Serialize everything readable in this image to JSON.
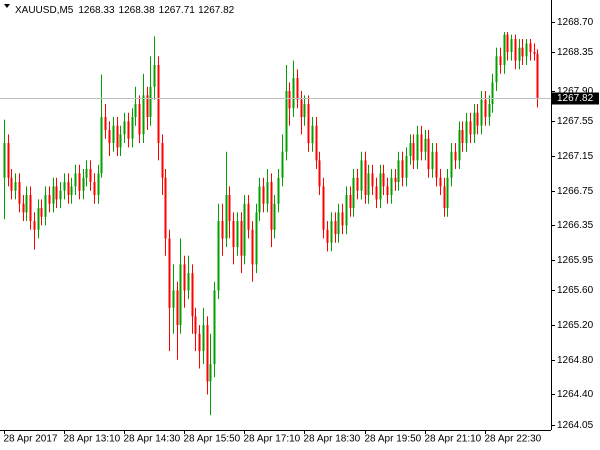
{
  "chart_data": {
    "type": "candlestick",
    "title": "XAUUSD,M5",
    "up_color": "#00a000",
    "down_color": "#ff0000",
    "price_line_color": "#c0c0c0",
    "xlim": [
      -1,
      145.6
    ],
    "xticks": [
      {
        "value": 0,
        "label": "28 Apr 2017"
      },
      {
        "value": 16,
        "label": "28 Apr 13:10"
      },
      {
        "value": 32,
        "label": "28 Apr 14:30"
      },
      {
        "value": 48,
        "label": "28 Apr 15:50"
      },
      {
        "value": 64,
        "label": "28 Apr 17:10"
      },
      {
        "value": 80,
        "label": "28 Apr 18:30"
      },
      {
        "value": 96,
        "label": "28 Apr 19:50"
      },
      {
        "value": 112,
        "label": "28 Apr 21:10"
      },
      {
        "value": 128,
        "label": "28 Apr 22:30"
      }
    ],
    "ylim": [
      1263.99,
      1268.95
    ],
    "yticks": [
      {
        "value": 1268.7,
        "label": "1268.70"
      },
      {
        "value": 1268.35,
        "label": "1268.35"
      },
      {
        "value": 1267.9,
        "label": "1267.90"
      },
      {
        "value": 1267.55,
        "label": "1267.55"
      },
      {
        "value": 1267.15,
        "label": "1267.15"
      },
      {
        "value": 1266.75,
        "label": "1266.75"
      },
      {
        "value": 1266.35,
        "label": "1266.35"
      },
      {
        "value": 1265.95,
        "label": "1265.95"
      },
      {
        "value": 1265.6,
        "label": "1265.60"
      },
      {
        "value": 1265.2,
        "label": "1265.20"
      },
      {
        "value": 1264.8,
        "label": "1264.80"
      },
      {
        "value": 1264.4,
        "label": "1264.40"
      },
      {
        "value": 1264.05,
        "label": "1264.05"
      }
    ],
    "open": [
      1266.9,
      1267.3,
      1266.9,
      1266.75,
      1266.85,
      1266.6,
      1266.5,
      1266.7,
      1266.4,
      1266.3,
      1266.55,
      1266.45,
      1266.7,
      1266.6,
      1266.8,
      1266.65,
      1266.75,
      1266.85,
      1266.7,
      1266.8,
      1266.95,
      1266.75,
      1266.9,
      1267.0,
      1266.85,
      1266.7,
      1266.95,
      1267.6,
      1267.45,
      1267.3,
      1267.5,
      1267.25,
      1267.4,
      1267.55,
      1267.35,
      1267.6,
      1267.75,
      1267.4,
      1267.85,
      1267.6,
      1267.95,
      1268.2,
      1267.3,
      1266.9,
      1266.2,
      1265.4,
      1265.6,
      1265.2,
      1265.9,
      1265.6,
      1265.8,
      1265.3,
      1265.1,
      1264.9,
      1265.2,
      1264.55,
      1264.75,
      1265.6,
      1266.4,
      1266.2,
      1266.7,
      1266.4,
      1266.1,
      1266.4,
      1266.0,
      1266.6,
      1266.3,
      1265.9,
      1266.5,
      1266.8,
      1266.6,
      1266.85,
      1266.3,
      1266.6,
      1266.9,
      1267.2,
      1267.9,
      1267.7,
      1268.05,
      1267.8,
      1267.6,
      1267.75,
      1267.3,
      1267.5,
      1267.1,
      1266.8,
      1266.3,
      1266.15,
      1266.4,
      1266.25,
      1266.5,
      1266.35,
      1266.7,
      1266.55,
      1266.9,
      1266.75,
      1267.1,
      1266.7,
      1266.95,
      1266.8,
      1266.65,
      1266.95,
      1266.8,
      1266.7,
      1266.9,
      1266.85,
      1267.1,
      1266.9,
      1267.15,
      1267.3,
      1267.1,
      1267.4,
      1267.2,
      1267.35,
      1267.0,
      1267.2,
      1266.9,
      1266.8,
      1266.55,
      1266.9,
      1267.2,
      1267.1,
      1267.45,
      1267.3,
      1267.55,
      1267.4,
      1267.65,
      1267.5,
      1267.8,
      1267.6,
      1267.75,
      1268.0,
      1268.3,
      1268.2,
      1268.55,
      1268.35,
      1268.5,
      1268.25,
      1268.4,
      1268.3,
      1268.45,
      1268.35,
      1268.33
    ],
    "high": [
      1267.57,
      1267.4,
      1267.0,
      1266.95,
      1266.95,
      1266.7,
      1266.8,
      1266.8,
      1266.5,
      1266.65,
      1266.65,
      1266.8,
      1266.8,
      1266.9,
      1266.9,
      1266.85,
      1266.95,
      1266.95,
      1266.9,
      1267.05,
      1267.05,
      1267.0,
      1267.1,
      1267.1,
      1266.95,
      1267.05,
      1268.09,
      1267.75,
      1267.55,
      1267.6,
      1267.6,
      1267.5,
      1267.65,
      1267.65,
      1267.7,
      1267.95,
      1267.85,
      1268.1,
      1267.95,
      1268.3,
      1268.53,
      1268.3,
      1267.4,
      1267.0,
      1266.3,
      1265.9,
      1265.7,
      1266.2,
      1266.0,
      1266.0,
      1265.9,
      1265.4,
      1265.2,
      1265.4,
      1265.3,
      1265.1,
      1265.7,
      1266.6,
      1266.6,
      1267.2,
      1266.8,
      1266.5,
      1266.5,
      1266.5,
      1266.7,
      1266.7,
      1266.4,
      1266.6,
      1266.9,
      1266.9,
      1267.0,
      1266.95,
      1266.7,
      1267.0,
      1267.4,
      1268.2,
      1268.0,
      1268.25,
      1268.15,
      1267.9,
      1267.85,
      1267.85,
      1267.6,
      1267.6,
      1267.2,
      1266.9,
      1266.4,
      1266.5,
      1266.5,
      1266.6,
      1266.6,
      1266.8,
      1266.8,
      1267.0,
      1267.0,
      1267.2,
      1267.2,
      1267.05,
      1267.05,
      1266.9,
      1267.05,
      1267.05,
      1266.9,
      1267.0,
      1267.0,
      1267.2,
      1267.2,
      1267.25,
      1267.4,
      1267.4,
      1267.5,
      1267.5,
      1267.45,
      1267.45,
      1267.3,
      1267.3,
      1267.0,
      1266.9,
      1267.0,
      1267.3,
      1267.3,
      1267.55,
      1267.55,
      1267.65,
      1267.65,
      1267.75,
      1267.75,
      1267.9,
      1267.9,
      1267.85,
      1268.1,
      1268.4,
      1268.4,
      1268.58,
      1268.58,
      1268.55,
      1268.55,
      1268.5,
      1268.5,
      1268.5,
      1268.5,
      1268.45,
      1268.38
    ],
    "low": [
      1266.42,
      1266.8,
      1266.65,
      1266.65,
      1266.5,
      1266.4,
      1266.4,
      1266.3,
      1266.07,
      1266.2,
      1266.35,
      1266.35,
      1266.5,
      1266.5,
      1266.55,
      1266.55,
      1266.65,
      1266.6,
      1266.6,
      1266.7,
      1266.65,
      1266.65,
      1266.8,
      1266.75,
      1266.6,
      1266.6,
      1266.9,
      1267.35,
      1267.15,
      1267.2,
      1267.15,
      1267.15,
      1267.3,
      1267.25,
      1267.25,
      1267.5,
      1267.3,
      1267.3,
      1267.45,
      1267.5,
      1267.8,
      1267.1,
      1266.7,
      1266.0,
      1264.9,
      1265.1,
      1264.8,
      1265.1,
      1265.4,
      1265.5,
      1265.1,
      1264.9,
      1264.7,
      1264.75,
      1264.4,
      1264.16,
      1264.6,
      1265.5,
      1266.0,
      1266.1,
      1266.2,
      1265.9,
      1266.0,
      1265.8,
      1265.9,
      1266.2,
      1265.7,
      1265.8,
      1266.4,
      1266.5,
      1266.5,
      1266.1,
      1266.2,
      1266.5,
      1266.8,
      1267.1,
      1267.5,
      1267.6,
      1267.7,
      1267.4,
      1267.5,
      1267.2,
      1267.2,
      1267.0,
      1266.7,
      1266.2,
      1266.05,
      1266.05,
      1266.15,
      1266.15,
      1266.25,
      1266.25,
      1266.45,
      1266.45,
      1266.65,
      1266.65,
      1266.6,
      1266.6,
      1266.7,
      1266.55,
      1266.55,
      1266.7,
      1266.6,
      1266.6,
      1266.75,
      1266.75,
      1266.8,
      1266.8,
      1267.05,
      1267.0,
      1267.0,
      1267.1,
      1267.1,
      1266.9,
      1266.9,
      1266.8,
      1266.7,
      1266.45,
      1266.45,
      1266.8,
      1267.0,
      1267.0,
      1267.2,
      1267.2,
      1267.3,
      1267.3,
      1267.4,
      1267.4,
      1267.5,
      1267.5,
      1267.65,
      1267.9,
      1268.1,
      1268.1,
      1268.25,
      1268.25,
      1268.15,
      1268.15,
      1268.2,
      1268.2,
      1268.25,
      1268.25,
      1267.71
    ],
    "close": [
      1267.3,
      1266.9,
      1266.75,
      1266.85,
      1266.6,
      1266.5,
      1266.7,
      1266.4,
      1266.3,
      1266.55,
      1266.45,
      1266.7,
      1266.6,
      1266.8,
      1266.65,
      1266.75,
      1266.85,
      1266.7,
      1266.8,
      1266.95,
      1266.75,
      1266.9,
      1267.0,
      1266.85,
      1266.7,
      1266.95,
      1267.6,
      1267.45,
      1267.3,
      1267.5,
      1267.25,
      1267.4,
      1267.55,
      1267.35,
      1267.6,
      1267.75,
      1267.4,
      1267.85,
      1267.6,
      1267.95,
      1268.2,
      1267.3,
      1266.9,
      1266.2,
      1265.4,
      1265.6,
      1265.2,
      1265.9,
      1265.6,
      1265.8,
      1265.3,
      1265.1,
      1264.9,
      1265.2,
      1264.55,
      1264.75,
      1265.6,
      1266.4,
      1266.2,
      1266.7,
      1266.4,
      1266.1,
      1266.4,
      1266.0,
      1266.6,
      1266.3,
      1265.9,
      1266.5,
      1266.8,
      1266.6,
      1266.85,
      1266.3,
      1266.6,
      1266.9,
      1267.2,
      1267.9,
      1267.7,
      1268.05,
      1267.8,
      1267.6,
      1267.75,
      1267.3,
      1267.5,
      1267.1,
      1266.8,
      1266.3,
      1266.15,
      1266.4,
      1266.25,
      1266.5,
      1266.35,
      1266.7,
      1266.55,
      1266.9,
      1266.75,
      1267.1,
      1266.7,
      1266.95,
      1266.8,
      1266.65,
      1266.95,
      1266.8,
      1266.7,
      1266.9,
      1266.85,
      1267.1,
      1266.9,
      1267.15,
      1267.3,
      1267.1,
      1267.4,
      1267.2,
      1267.35,
      1267.0,
      1267.2,
      1266.9,
      1266.8,
      1266.55,
      1266.9,
      1267.2,
      1267.1,
      1267.45,
      1267.3,
      1267.55,
      1267.4,
      1267.65,
      1267.5,
      1267.8,
      1267.6,
      1267.75,
      1268.0,
      1268.3,
      1268.2,
      1268.55,
      1268.35,
      1268.5,
      1268.25,
      1268.4,
      1268.3,
      1268.45,
      1268.35,
      1268.33,
      1267.82
    ]
  }
}
